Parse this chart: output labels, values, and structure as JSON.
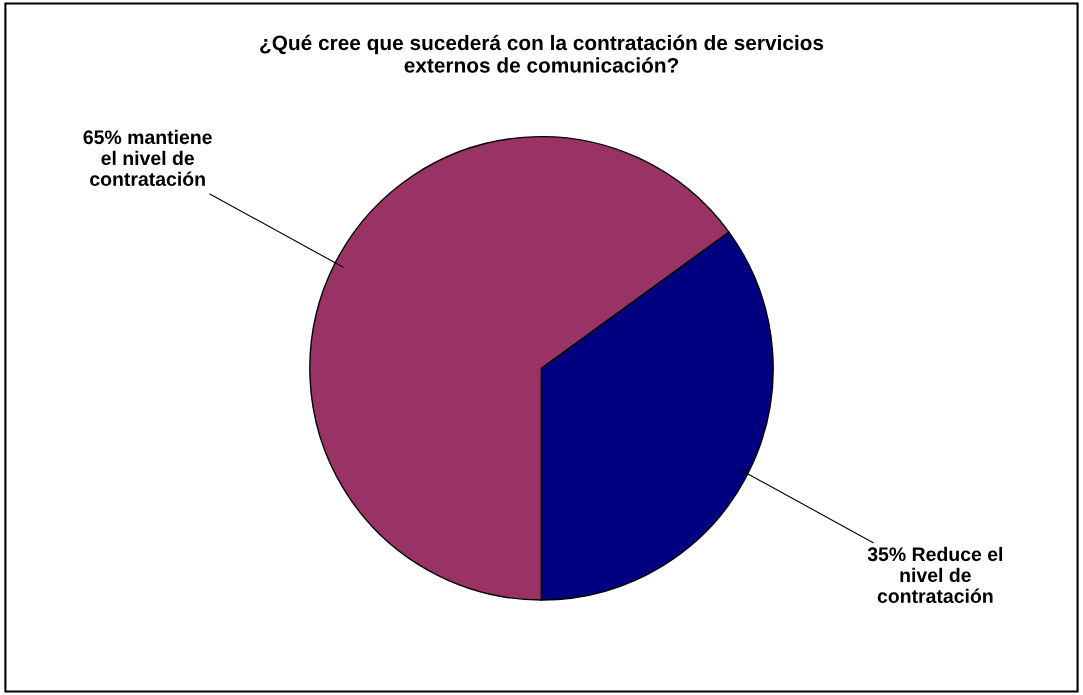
{
  "chart_data": {
    "type": "pie",
    "title": "¿Qué cree que sucederá con la contratación de servicios\nexternos de comunicación?",
    "categories": [
      "65% mantiene\nel nivel de\ncontratación",
      "35% Reduce el\nnivel de\ncontratación"
    ],
    "values": [
      65,
      35
    ],
    "colors": [
      "#993366",
      "#000080"
    ],
    "legend": false
  }
}
